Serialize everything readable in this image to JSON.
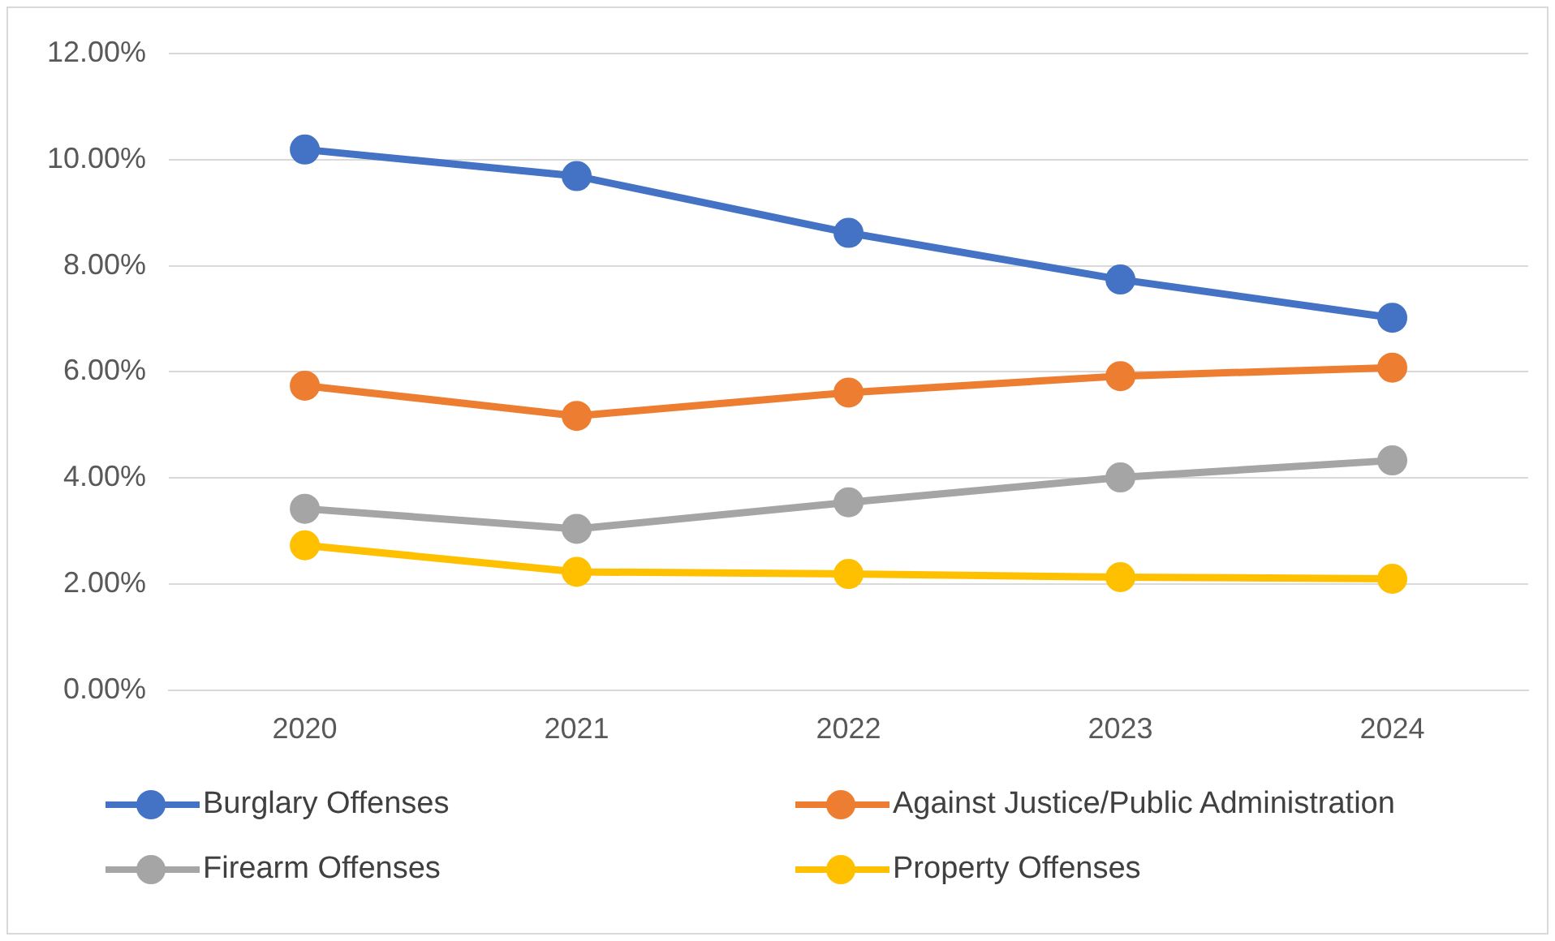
{
  "chart_data": {
    "type": "line",
    "categories": [
      "2020",
      "2021",
      "2022",
      "2023",
      "2024"
    ],
    "series": [
      {
        "name": "Burglary Offenses",
        "color": "#4472c4",
        "values": [
          10.19,
          9.69,
          8.62,
          7.74,
          7.02
        ]
      },
      {
        "name": "Against Justice/Public Administration",
        "color": "#ed7d31",
        "values": [
          5.74,
          5.17,
          5.61,
          5.92,
          6.08
        ]
      },
      {
        "name": "Firearm Offenses",
        "color": "#a5a5a5",
        "values": [
          3.42,
          3.04,
          3.54,
          4.01,
          4.33
        ]
      },
      {
        "name": "Property Offenses",
        "color": "#ffc000",
        "values": [
          2.73,
          2.23,
          2.19,
          2.13,
          2.1
        ]
      }
    ],
    "ylim": [
      0,
      12
    ],
    "yticks": [
      {
        "value": 0,
        "label": "0.00%"
      },
      {
        "value": 2,
        "label": "2.00%"
      },
      {
        "value": 4,
        "label": "4.00%"
      },
      {
        "value": 6,
        "label": "6.00%"
      },
      {
        "value": 8,
        "label": "8.00%"
      },
      {
        "value": 10,
        "label": "10.00%"
      },
      {
        "value": 12,
        "label": "12.00%"
      }
    ],
    "grid": "y",
    "legend": "bottom",
    "marker": "circle",
    "line_style": "solid"
  }
}
